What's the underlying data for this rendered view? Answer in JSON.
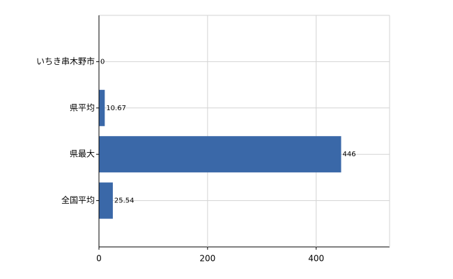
{
  "chart_data": {
    "type": "bar",
    "orientation": "horizontal",
    "categories": [
      "いちき串木野市",
      "県平均",
      "県最大",
      "全国平均"
    ],
    "values": [
      0,
      10.67,
      446,
      25.54
    ],
    "color": "#3a68a8",
    "xlim": [
      0,
      535.2
    ],
    "xticks": [
      0,
      200,
      400
    ],
    "grid": true
  }
}
